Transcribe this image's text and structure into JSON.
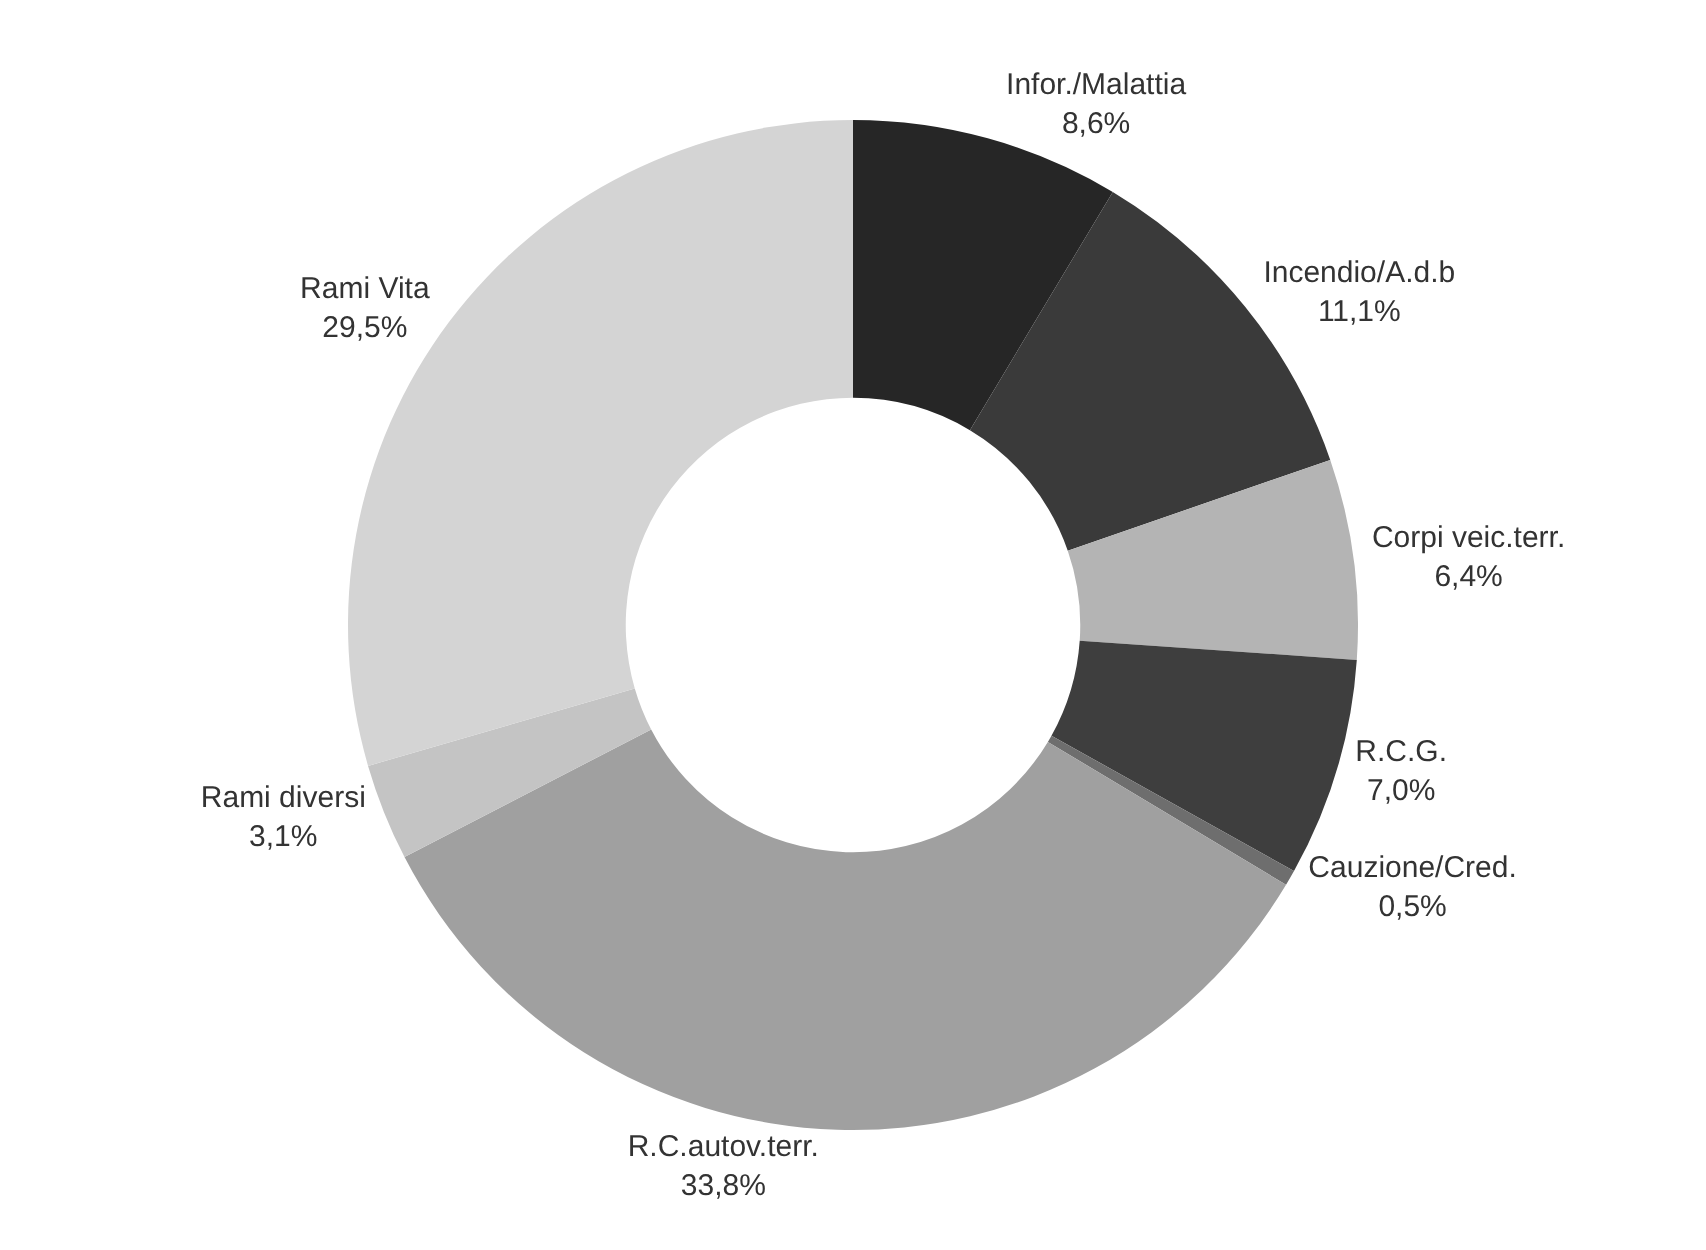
{
  "chart_data": {
    "type": "donut",
    "categories": [
      "Infor./Malattia",
      "Incendio/A.d.b",
      "Corpi veic.terr.",
      "R.C.G.",
      "Cauzione/Cred.",
      "R.C.autov.terr.",
      "Rami diversi",
      "Rami Vita"
    ],
    "values": [
      8.6,
      11.1,
      6.4,
      7.0,
      0.5,
      33.8,
      3.1,
      29.5
    ],
    "value_labels": [
      "8,6%",
      "11,1%",
      "6,4%",
      "7,0%",
      "0,5%",
      "33,8%",
      "3,1%",
      "29,5%"
    ],
    "colors": [
      "#262626",
      "#3a3a3a",
      "#b4b4b4",
      "#3e3e3e",
      "#6e6e6e",
      "#a0a0a0",
      "#c4c4c4",
      "#d4d4d4"
    ],
    "legend": false
  }
}
